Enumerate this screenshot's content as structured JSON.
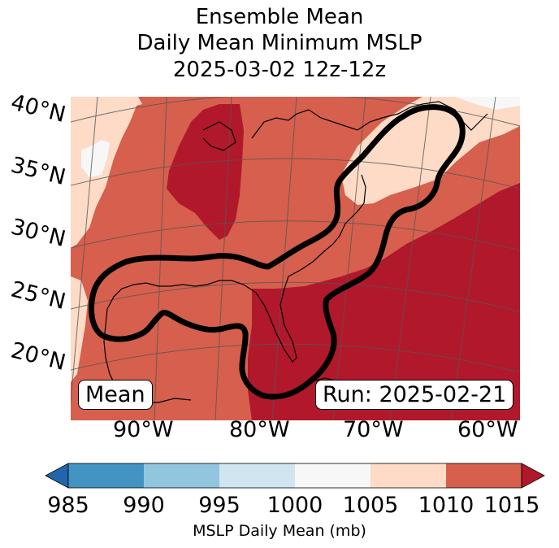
{
  "title": {
    "line1": "Ensemble Mean",
    "line2": "Daily Mean Minimum MSLP",
    "line3": "2025-03-02 12z-12z"
  },
  "map": {
    "lat_labels": [
      "40°N",
      "35°N",
      "30°N",
      "25°N",
      "20°N"
    ],
    "lon_labels": [
      "90°W",
      "80°W",
      "70°W",
      "60°W"
    ],
    "mean_box": "Mean",
    "run_box": "Run: 2025-02-21"
  },
  "colorbar": {
    "ticks": [
      "985",
      "990",
      "995",
      "1000",
      "1005",
      "1010",
      "1015"
    ],
    "label": "MSLP Daily Mean (mb)",
    "colors": {
      "under": "#2166ac",
      "c985_990": "#4393c3",
      "c990_995": "#92c5de",
      "c995_1000": "#d1e5f0",
      "c1000_1005": "#f7f7f7",
      "c1005_1010": "#fddbc7",
      "c1010_1015": "#d6604d",
      "over": "#b2182b"
    }
  }
}
